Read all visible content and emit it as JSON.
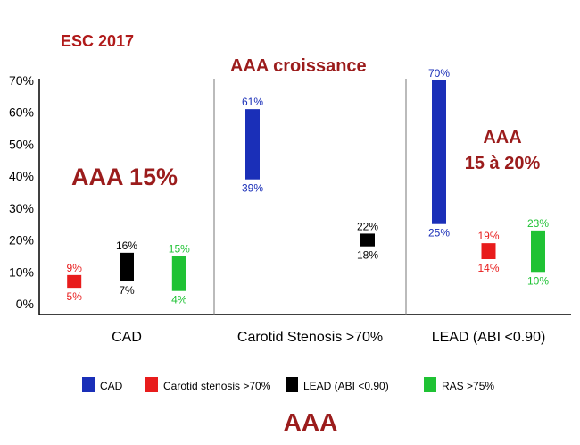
{
  "texts": {
    "header": "ESC 2017",
    "panel1_annotation": "AAA 15%",
    "panel2_annotation": "AAA croissance",
    "panel3_annotation_line1": "AAA",
    "panel3_annotation_line2": "15 à 20%",
    "footer": "AAA"
  },
  "chart_data": {
    "type": "bar",
    "subtype": "floating-range",
    "yticks": [
      "0%",
      "10%",
      "20%",
      "30%",
      "40%",
      "50%",
      "60%",
      "70%"
    ],
    "ylim": [
      0,
      70
    ],
    "categories": [
      "CAD",
      "Carotid Stenosis >70%",
      "LEAD (ABI <0.90)"
    ],
    "series": [
      {
        "name": "CAD",
        "color": "#1a2fb8",
        "ranges": [
          null,
          {
            "low": 39,
            "high": 61,
            "low_label": "39%",
            "high_label": "61%"
          },
          {
            "low": 25,
            "high": 70,
            "low_label": "25%",
            "high_label": "70%"
          }
        ]
      },
      {
        "name": "Carotid stenosis >70%",
        "color": "#e81c1c",
        "ranges": [
          {
            "low": 5,
            "high": 9,
            "low_label": "5%",
            "high_label": "9%"
          },
          null,
          {
            "low": 14,
            "high": 19,
            "low_label": "14%",
            "high_label": "19%"
          }
        ]
      },
      {
        "name": "LEAD (ABI <0.90)",
        "color": "#000000",
        "ranges": [
          {
            "low": 7,
            "high": 16,
            "low_label": "7%",
            "high_label": "16%"
          },
          {
            "low": 18,
            "high": 22,
            "low_label": "18%",
            "high_label": "22%"
          },
          null
        ]
      },
      {
        "name": "RAS >75%",
        "color": "#1fc234",
        "ranges": [
          {
            "low": 4,
            "high": 15,
            "low_label": "4%",
            "high_label": "15%"
          },
          null,
          {
            "low": 10,
            "high": 23,
            "low_label": "10%",
            "high_label": "23%"
          }
        ]
      }
    ],
    "legend_position": "bottom"
  }
}
